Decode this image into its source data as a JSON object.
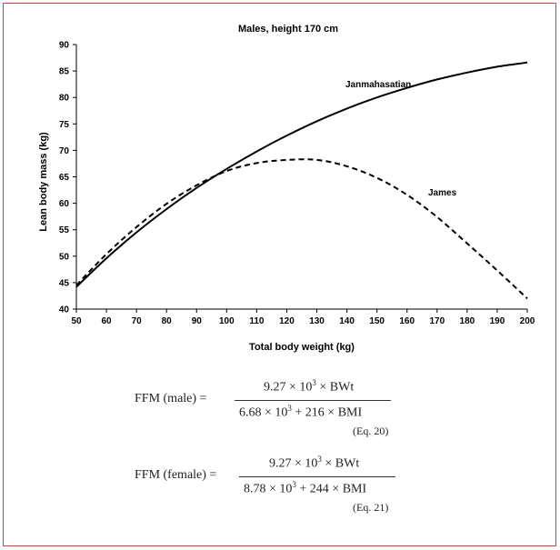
{
  "chart_data": {
    "type": "line",
    "title": "Males, height 170 cm",
    "xlabel": "Total body weight (kg)",
    "ylabel": "Lean body mass (kg)",
    "xlim": [
      50,
      200
    ],
    "ylim": [
      40,
      90
    ],
    "xticks": [
      50,
      60,
      70,
      80,
      90,
      100,
      110,
      120,
      130,
      140,
      150,
      160,
      170,
      180,
      190,
      200
    ],
    "yticks": [
      40,
      45,
      50,
      55,
      60,
      65,
      70,
      75,
      80,
      85,
      90
    ],
    "grid": false,
    "series": [
      {
        "name": "Janmahasatian",
        "style": "solid",
        "x": [
          50,
          60,
          70,
          80,
          90,
          100,
          110,
          120,
          130,
          140,
          150,
          160,
          170,
          180,
          190,
          200
        ],
        "y": [
          44.2,
          49.6,
          54.5,
          58.9,
          62.9,
          66.5,
          69.8,
          72.8,
          75.5,
          77.9,
          80.0,
          81.8,
          83.4,
          84.7,
          85.8,
          86.6
        ]
      },
      {
        "name": "James",
        "style": "dashed",
        "x": [
          50,
          60,
          70,
          80,
          90,
          100,
          110,
          120,
          130,
          140,
          150,
          160,
          170,
          180,
          190,
          200
        ],
        "y": [
          44.5,
          50.4,
          55.5,
          59.9,
          63.4,
          66.1,
          67.6,
          68.2,
          68.2,
          67.0,
          64.8,
          61.6,
          57.4,
          52.4,
          47.3,
          42.0
        ]
      }
    ]
  },
  "equations": [
    {
      "lhs": "FFM (male) =",
      "num_a": "9.27 × 10",
      "num_exp": "3",
      "num_b": " × BWt",
      "den_a": "6.68 × 10",
      "den_exp": "3",
      "den_b": " + 216 × BMI",
      "ref": "(Eq. 20)"
    },
    {
      "lhs": "FFM (female) =",
      "num_a": "9.27 × 10",
      "num_exp": "3",
      "num_b": " × BWt",
      "den_a": "8.78 × 10",
      "den_exp": "3",
      "den_b": " + 244 × BMI",
      "ref": "(Eq. 21)"
    }
  ]
}
